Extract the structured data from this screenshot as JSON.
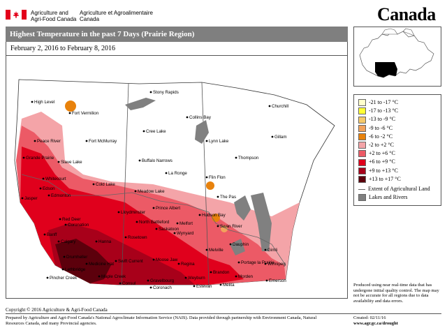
{
  "header": {
    "department_en": "Agriculture and Agri-Food Canada",
    "department_fr": "Agriculture et Agroalimentaire Canada",
    "wordmark": "Canada"
  },
  "title": "Highest Temperature in the past 7 Days (Prairie Region)",
  "date_range": "February 2, 2016 to February 8, 2016",
  "legend": {
    "items": [
      {
        "label": "-21 to -17 °C",
        "color": "#ffffcc"
      },
      {
        "label": "-17 to -13 °C",
        "color": "#ffff33"
      },
      {
        "label": "-13 to -9 °C",
        "color": "#f5c96a"
      },
      {
        "label": "-9 to -6 °C",
        "color": "#f2a25c"
      },
      {
        "label": "-6 to -2 °C",
        "color": "#e8820c"
      },
      {
        "label": "-2 to +2 °C",
        "color": "#f4a4a8"
      },
      {
        "label": "+2 to +6 °C",
        "color": "#ec5a66"
      },
      {
        "label": "+6 to +9 °C",
        "color": "#e0001c"
      },
      {
        "label": "+9 to +13 °C",
        "color": "#a8001a"
      },
      {
        "label": "+13 to +17 °C",
        "color": "#5c000c"
      }
    ],
    "ag_land": "Extent of Agricultural Land",
    "lakes": "Lakes and Rivers"
  },
  "disclaimer": "Produced using near real-time data that has undergone initial quality control. The map may not be accurate for all regions due to data availability and data errors.",
  "copyright": "Copyright © 2016 Agriculture & Agri-Food Canada",
  "prepared_by": "Prepared by Agriculture and Agri-Food Canada's National Agroclimate Information Service (NAIS). Data provided through partnership with Environment Canada, Natural Resources Canada, and many Provincial agencies.",
  "created": "Created: 02/11/16",
  "url": "www.agr.gc.ca/drought",
  "cities": [
    {
      "name": "High Level",
      "icon": "station-dot"
    },
    {
      "name": "Fort Vermilion",
      "icon": "station-dot"
    },
    {
      "name": "Stony Rapids",
      "icon": "station-dot"
    },
    {
      "name": "Churchill",
      "icon": "station-dot"
    },
    {
      "name": "Collins Bay",
      "icon": "station-dot"
    },
    {
      "name": "Peace River",
      "icon": "station-dot"
    },
    {
      "name": "Fort McMurray",
      "icon": "station-dot"
    },
    {
      "name": "Cree Lake",
      "icon": "station-dot"
    },
    {
      "name": "Lynn Lake",
      "icon": "station-dot"
    },
    {
      "name": "Gillam",
      "icon": "station-dot"
    },
    {
      "name": "Grande Prairie",
      "icon": "station-dot"
    },
    {
      "name": "Slave Lake",
      "icon": "station-dot"
    },
    {
      "name": "Buffalo Narrows",
      "icon": "station-dot"
    },
    {
      "name": "Thompson",
      "icon": "station-dot"
    },
    {
      "name": "La Ronge",
      "icon": "station-dot"
    },
    {
      "name": "Whitecourt",
      "icon": "station-dot"
    },
    {
      "name": "Cold Lake",
      "icon": "station-dot"
    },
    {
      "name": "Flin Flon",
      "icon": "station-dot"
    },
    {
      "name": "Edson",
      "icon": "station-dot"
    },
    {
      "name": "Meadow Lake",
      "icon": "station-dot"
    },
    {
      "name": "Jasper",
      "icon": "station-dot"
    },
    {
      "name": "Edmonton",
      "icon": "station-dot"
    },
    {
      "name": "The Pas",
      "icon": "station-dot"
    },
    {
      "name": "Lloydminster",
      "icon": "station-dot"
    },
    {
      "name": "Prince Albert",
      "icon": "station-dot"
    },
    {
      "name": "Hudson Bay",
      "icon": "station-dot"
    },
    {
      "name": "Red Deer",
      "icon": "station-dot"
    },
    {
      "name": "North Battleford",
      "icon": "station-dot"
    },
    {
      "name": "Melfort",
      "icon": "station-dot"
    },
    {
      "name": "Coronation",
      "icon": "station-dot"
    },
    {
      "name": "Saskatoon",
      "icon": "station-dot"
    },
    {
      "name": "Swan River",
      "icon": "station-dot"
    },
    {
      "name": "Banff",
      "icon": "station-dot"
    },
    {
      "name": "Hanna",
      "icon": "station-dot"
    },
    {
      "name": "Rosetown",
      "icon": "station-dot"
    },
    {
      "name": "Wynyard",
      "icon": "station-dot"
    },
    {
      "name": "Calgary",
      "icon": "station-dot"
    },
    {
      "name": "Dauphin",
      "icon": "station-dot"
    },
    {
      "name": "Gimli",
      "icon": "station-dot"
    },
    {
      "name": "Melville",
      "icon": "station-dot"
    },
    {
      "name": "Drumheller",
      "icon": "station-dot"
    },
    {
      "name": "Medicine Hat",
      "icon": "station-dot"
    },
    {
      "name": "Swift Current",
      "icon": "station-dot"
    },
    {
      "name": "Moose Jaw",
      "icon": "station-dot"
    },
    {
      "name": "Regina",
      "icon": "station-dot"
    },
    {
      "name": "Portage la Prairie",
      "icon": "station-dot"
    },
    {
      "name": "Winnipeg",
      "icon": "station-dot"
    },
    {
      "name": "Lethbridge",
      "icon": "station-dot"
    },
    {
      "name": "Pincher Creek",
      "icon": "station-dot"
    },
    {
      "name": "Maple Creek",
      "icon": "station-dot"
    },
    {
      "name": "Consul",
      "icon": "station-dot"
    },
    {
      "name": "Gravelbourg",
      "icon": "station-dot"
    },
    {
      "name": "Coronach",
      "icon": "station-dot"
    },
    {
      "name": "Weyburn",
      "icon": "station-dot"
    },
    {
      "name": "Estevan",
      "icon": "station-dot"
    },
    {
      "name": "Brandon",
      "icon": "station-dot"
    },
    {
      "name": "Melita",
      "icon": "station-dot"
    },
    {
      "name": "Morden",
      "icon": "station-dot"
    },
    {
      "name": "Emerson",
      "icon": "station-dot"
    }
  ]
}
